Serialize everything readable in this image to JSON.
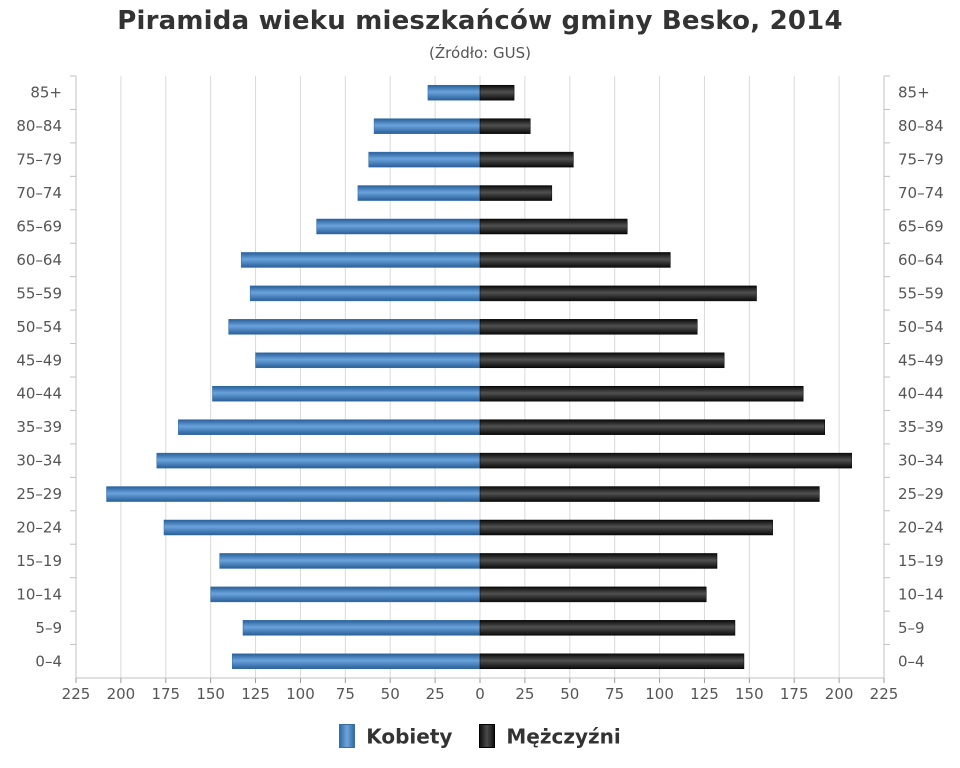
{
  "title": "Piramida wieku mieszkańców gminy Besko, 2014",
  "subtitle": "(Źródło: GUS)",
  "colors": {
    "women": "#3d7cc0",
    "men": "#1a1a1a",
    "grid": "#d9d9d9",
    "axis_text": "#555555"
  },
  "legend": {
    "placement": "bottom-center",
    "women_label": "Kobiety",
    "men_label": "Mężczyźni"
  },
  "chart_data": {
    "type": "bar",
    "orientation": "horizontal-population-pyramid",
    "categories": [
      "85+",
      "80–84",
      "75–79",
      "70–74",
      "65–69",
      "60–64",
      "55–59",
      "50–54",
      "45–49",
      "40–44",
      "35–39",
      "30–34",
      "25–29",
      "20–24",
      "15–19",
      "10–14",
      "5–9",
      "0–4"
    ],
    "series": [
      {
        "name": "Kobiety",
        "side": "left",
        "values": [
          29,
          59,
          62,
          68,
          91,
          133,
          128,
          140,
          125,
          149,
          168,
          180,
          208,
          176,
          145,
          150,
          132,
          138
        ]
      },
      {
        "name": "Mężczyźni",
        "side": "right",
        "values": [
          19,
          28,
          52,
          40,
          82,
          106,
          154,
          121,
          136,
          180,
          192,
          207,
          189,
          163,
          132,
          126,
          142,
          147
        ]
      }
    ],
    "x_ticks": [
      "225",
      "200",
      "175",
      "150",
      "125",
      "100",
      "75",
      "50",
      "25",
      "0",
      "25",
      "50",
      "75",
      "100",
      "125",
      "150",
      "175",
      "200",
      "225"
    ],
    "xlim": [
      -225,
      225
    ],
    "grid": true
  }
}
